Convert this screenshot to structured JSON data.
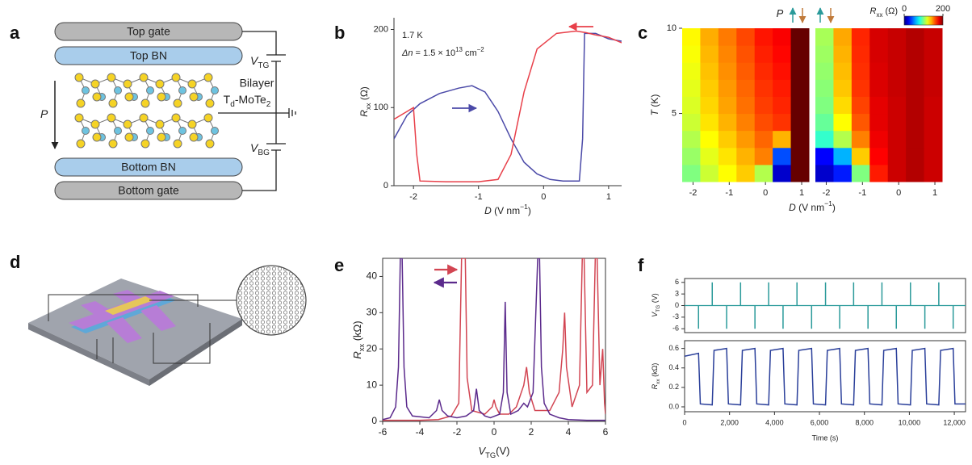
{
  "panel_labels": [
    "a",
    "b",
    "c",
    "d",
    "e",
    "f"
  ],
  "diagram_a": {
    "layers": [
      "Top gate",
      "Top BN",
      "Bottom BN",
      "Bottom gate"
    ],
    "material": [
      "Bilayer",
      [
        "T",
        {
          "sub": "d"
        },
        "-MoTe",
        {
          "sub": "2"
        }
      ]
    ],
    "polarization": [
      {
        "i": "P"
      }
    ],
    "voltages": [
      [
        {
          "i": "V"
        },
        {
          "sub": "TG"
        }
      ],
      [
        {
          "i": "V"
        },
        {
          "sub": "BG"
        }
      ]
    ]
  },
  "chart_data": [
    {
      "type": "line",
      "xlim": [
        -2.3,
        1.2
      ],
      "ylim": [
        0,
        215
      ],
      "xticks": [
        -2,
        -1,
        0,
        1
      ],
      "yticks": [
        0,
        100,
        200
      ],
      "xlabel": [
        {
          "i": "D"
        },
        " (V nm",
        {
          "sup": "−1"
        },
        ")"
      ],
      "ylabel": [
        {
          "i": "R"
        },
        {
          "sub": "xx"
        },
        " (Ω)"
      ],
      "annotations": [
        "1.7 K",
        [
          {
            "i": "Δn"
          },
          " = 1.5 × 10",
          {
            "sup": "13"
          },
          " cm",
          {
            "sup": "−2"
          }
        ]
      ],
      "series": [
        {
          "color": "#4b4aa8",
          "x": [
            -2.3,
            -2.1,
            -1.9,
            -1.6,
            -1.3,
            -1.1,
            -0.9,
            -0.7,
            -0.5,
            -0.3,
            -0.1,
            0.1,
            0.3,
            0.55,
            0.6,
            0.63,
            0.8,
            1.0,
            1.2
          ],
          "values": [
            60,
            90,
            105,
            118,
            125,
            128,
            120,
            95,
            60,
            30,
            15,
            8,
            6,
            6,
            60,
            195,
            195,
            188,
            185
          ]
        },
        {
          "color": "#e8404a",
          "x": [
            -2.3,
            -2.1,
            -2.0,
            -1.95,
            -1.9,
            -1.5,
            -1.0,
            -0.7,
            -0.5,
            -0.3,
            -0.1,
            0.2,
            0.5,
            0.65,
            0.8,
            1.0,
            1.2
          ],
          "values": [
            85,
            95,
            100,
            40,
            6,
            5,
            5,
            8,
            40,
            120,
            175,
            195,
            198,
            196,
            193,
            190,
            183
          ]
        }
      ]
    },
    {
      "type": "heatmap",
      "xlim": [
        -2.3,
        1.2
      ],
      "ylim": [
        1,
        10
      ],
      "xticks": [
        -2,
        -1,
        0,
        1
      ],
      "yticks": [
        5,
        10
      ],
      "xlabel": [
        {
          "i": "D"
        },
        " (V nm",
        {
          "sup": "−1"
        },
        ")"
      ],
      "ylabel": [
        {
          "i": "T"
        },
        " (K)"
      ],
      "annotation": [
        {
          "i": "P"
        }
      ],
      "clim": [
        0,
        200
      ],
      "colorbar_ticks": [
        0,
        200
      ],
      "colorbar_label": [
        {
          "i": "R"
        },
        {
          "sub": "xx"
        },
        " (Ω)"
      ],
      "x": [
        -2.05,
        -1.55,
        -1.05,
        -0.55,
        -0.05,
        0.45,
        0.95
      ],
      "y": [
        1.5,
        2.5,
        3.5,
        4.5,
        5.5,
        6.5,
        7.5,
        8.5,
        9.5
      ],
      "values": [
        [
          100,
          115,
          125,
          135,
          110,
          15,
          205
        ],
        [
          105,
          120,
          130,
          140,
          150,
          40,
          205
        ],
        [
          110,
          125,
          135,
          145,
          155,
          140,
          205
        ],
        [
          115,
          130,
          140,
          150,
          160,
          165,
          205
        ],
        [
          118,
          133,
          143,
          153,
          163,
          168,
          205
        ],
        [
          120,
          135,
          145,
          155,
          165,
          170,
          205
        ],
        [
          122,
          137,
          147,
          157,
          167,
          172,
          205
        ],
        [
          124,
          139,
          149,
          159,
          169,
          174,
          205
        ],
        [
          126,
          141,
          151,
          161,
          171,
          176,
          205
        ]
      ]
    },
    {
      "type": "heatmap",
      "xlim": [
        -2.3,
        1.2
      ],
      "ylim": [
        1,
        10
      ],
      "xticks": [
        -2,
        -1,
        0,
        1
      ],
      "x": [
        -2.05,
        -1.55,
        -1.05,
        -0.55,
        -0.05,
        0.45,
        0.95
      ],
      "y": [
        1.5,
        2.5,
        3.5,
        4.5,
        5.5,
        6.5,
        7.5,
        8.5,
        9.5
      ],
      "values": [
        [
          15,
          30,
          100,
          170,
          185,
          190,
          185
        ],
        [
          25,
          60,
          135,
          175,
          185,
          190,
          185
        ],
        [
          85,
          110,
          150,
          178,
          185,
          190,
          185
        ],
        [
          95,
          125,
          158,
          180,
          185,
          190,
          185
        ],
        [
          100,
          132,
          162,
          180,
          185,
          190,
          185
        ],
        [
          102,
          136,
          165,
          182,
          186,
          190,
          186
        ],
        [
          104,
          138,
          166,
          182,
          186,
          190,
          186
        ],
        [
          106,
          140,
          167,
          183,
          186,
          190,
          186
        ],
        [
          108,
          142,
          168,
          183,
          186,
          190,
          186
        ]
      ]
    },
    {
      "type": "line",
      "xlim": [
        -6,
        6
      ],
      "ylim": [
        0,
        45
      ],
      "xticks": [
        -6,
        -4,
        -2,
        0,
        2,
        4,
        6
      ],
      "yticks": [
        0,
        10,
        20,
        30,
        40
      ],
      "xlabel": [
        {
          "i": "V"
        },
        {
          "sub": "TG"
        },
        "(V)"
      ],
      "ylabel": [
        {
          "i": "R"
        },
        {
          "sub": "xx"
        },
        " (kΩ)"
      ],
      "series": [
        {
          "color": "#d24552",
          "x": [
            -6,
            -4,
            -3,
            -2.3,
            -1.9,
            -1.75,
            -1.65,
            -1.55,
            -1.45,
            -1.2,
            -0.5,
            -0.1,
            0,
            0.1,
            0.3,
            0.8,
            1.2,
            1.6,
            1.75,
            1.9,
            2.2,
            3,
            3.5,
            3.7,
            3.8,
            3.9,
            4.2,
            4.6,
            4.75,
            4.85,
            5,
            5.3,
            5.45,
            5.55,
            5.7,
            5.85,
            5.95,
            6
          ],
          "values": [
            0.3,
            0.3,
            0.5,
            1.5,
            5,
            45,
            45,
            45,
            12,
            3,
            2,
            4,
            6,
            4,
            2,
            2,
            4,
            10,
            15,
            8,
            3,
            3,
            8,
            20,
            30,
            15,
            4,
            10,
            45,
            45,
            8,
            10,
            45,
            45,
            10,
            20,
            5,
            2
          ]
        },
        {
          "color": "#5b2a8c",
          "x": [
            -6,
            -5.6,
            -5.3,
            -5.15,
            -5.05,
            -4.95,
            -4.85,
            -4.7,
            -4.4,
            -3.5,
            -3.1,
            -2.95,
            -2.8,
            -2.5,
            -2,
            -1.5,
            -1.1,
            -0.95,
            -0.8,
            -0.5,
            -0.2,
            0.3,
            0.5,
            0.6,
            0.7,
            0.9,
            1.3,
            1.6,
            1.8,
            2.1,
            2.35,
            2.45,
            2.55,
            2.7,
            3,
            3.5,
            4,
            5,
            6
          ],
          "values": [
            0.5,
            1,
            4,
            15,
            45,
            45,
            15,
            4,
            1.5,
            1,
            3,
            6,
            3,
            1.5,
            1,
            1.5,
            3,
            9,
            3,
            1.5,
            1,
            2,
            8,
            33,
            8,
            2,
            3,
            5,
            4,
            8,
            45,
            45,
            15,
            5,
            2,
            1,
            0.5,
            0.3,
            0.3
          ]
        }
      ]
    },
    {
      "type": "spike",
      "xlim": [
        0,
        12500
      ],
      "ylim": [
        -7,
        7
      ],
      "yticks": [
        -6,
        -3,
        0,
        3,
        6
      ],
      "color": "#2a9a9a",
      "ylabel": [
        {
          "i": "V"
        },
        {
          "sub": "TG"
        },
        " (V)"
      ],
      "x": [
        620,
        1230,
        1870,
        2490,
        3130,
        3740,
        4380,
        5000,
        5650,
        6270,
        6900,
        7520,
        8160,
        8780,
        9420,
        10050,
        10690,
        11310,
        11950
      ],
      "values": [
        -6,
        6,
        -6,
        6,
        -6,
        6,
        -6,
        6,
        -6,
        6,
        -6,
        6,
        -6,
        6,
        -6,
        6,
        -6,
        6,
        -6
      ]
    },
    {
      "type": "line",
      "xlim": [
        0,
        12500
      ],
      "ylim": [
        -0.05,
        0.68
      ],
      "xticks": [
        0,
        {
          "value": 2000,
          "label": "2,000"
        },
        {
          "value": 4000,
          "label": "4,000"
        },
        {
          "value": 6000,
          "label": "6,000"
        },
        {
          "value": 8000,
          "label": "8,000"
        },
        {
          "value": 10000,
          "label": "10,000"
        },
        {
          "value": 12000,
          "label": "12,000"
        }
      ],
      "yticks": [
        {
          "value": 0,
          "label": "0.0"
        },
        {
          "value": 0.2,
          "label": "0.2"
        },
        {
          "value": 0.4,
          "label": "0.4"
        },
        {
          "value": 0.6,
          "label": "0.6"
        }
      ],
      "xlabel": "Time (s)",
      "ylabel": [
        {
          "i": "R"
        },
        {
          "sub": "xx"
        },
        " (kΩ)"
      ],
      "series": [
        {
          "color": "#2a3f9a",
          "x": [
            0,
            620,
            700,
            1230,
            1310,
            1870,
            1950,
            2490,
            2570,
            3130,
            3210,
            3740,
            3820,
            4380,
            4460,
            5000,
            5080,
            5650,
            5730,
            6270,
            6350,
            6900,
            6980,
            7520,
            7600,
            8160,
            8240,
            8780,
            8860,
            9420,
            9500,
            10050,
            10130,
            10690,
            10770,
            11310,
            11390,
            11950,
            12030,
            12500
          ],
          "values": [
            0.52,
            0.55,
            0.03,
            0.02,
            0.58,
            0.6,
            0.03,
            0.02,
            0.58,
            0.6,
            0.03,
            0.02,
            0.58,
            0.6,
            0.03,
            0.02,
            0.58,
            0.6,
            0.03,
            0.02,
            0.58,
            0.6,
            0.03,
            0.02,
            0.58,
            0.6,
            0.03,
            0.02,
            0.58,
            0.6,
            0.03,
            0.02,
            0.58,
            0.6,
            0.03,
            0.02,
            0.58,
            0.6,
            0.03,
            0.03
          ]
        }
      ]
    }
  ]
}
